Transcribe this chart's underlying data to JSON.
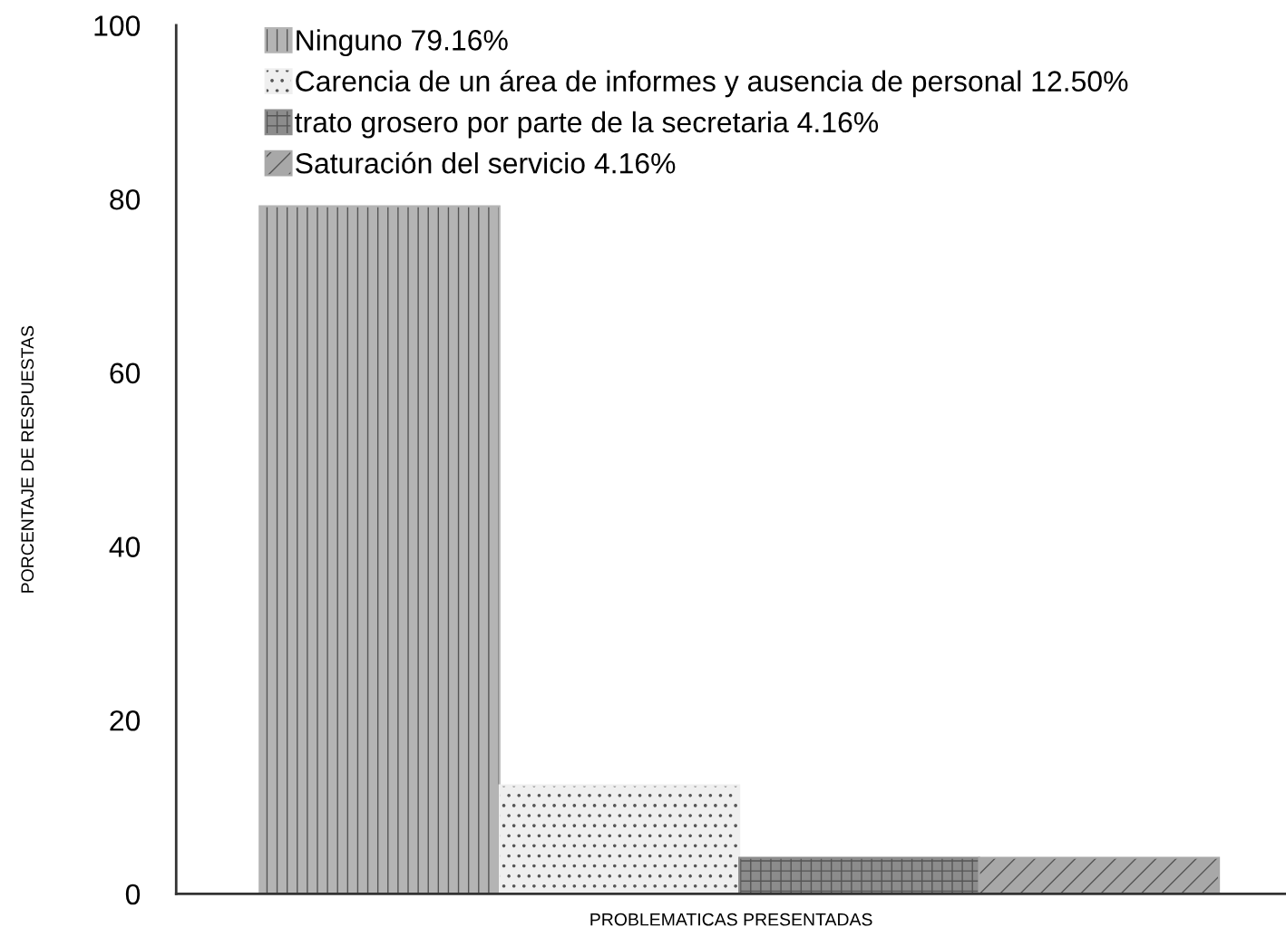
{
  "chart_data": {
    "type": "bar",
    "categories": [
      null
    ],
    "series": [
      {
        "name": "Ninguno 79.16%",
        "color": "#b4b4b4",
        "values": [
          79.16
        ]
      },
      {
        "name": "Carencia de un área de informes y ausencia de personal 12.50%",
        "color": "#efefef",
        "values": [
          12.5
        ]
      },
      {
        "name": "trato grosero por parte de la secretaria 4.16%",
        "color": "#8c8c8c",
        "values": [
          4.16
        ]
      },
      {
        "name": "Saturación del servicio 4.16%",
        "color": "#a8a8a8",
        "values": [
          4.16
        ]
      }
    ],
    "xlabel": "PROBLEMATICAS PRESENTADAS",
    "ylabel": "PORCENTAJE DE RESPUESTAS",
    "ylim": [
      0,
      100
    ],
    "yticks": [
      0,
      20,
      40,
      60,
      80,
      100
    ],
    "legend": "top left",
    "grid": false
  }
}
